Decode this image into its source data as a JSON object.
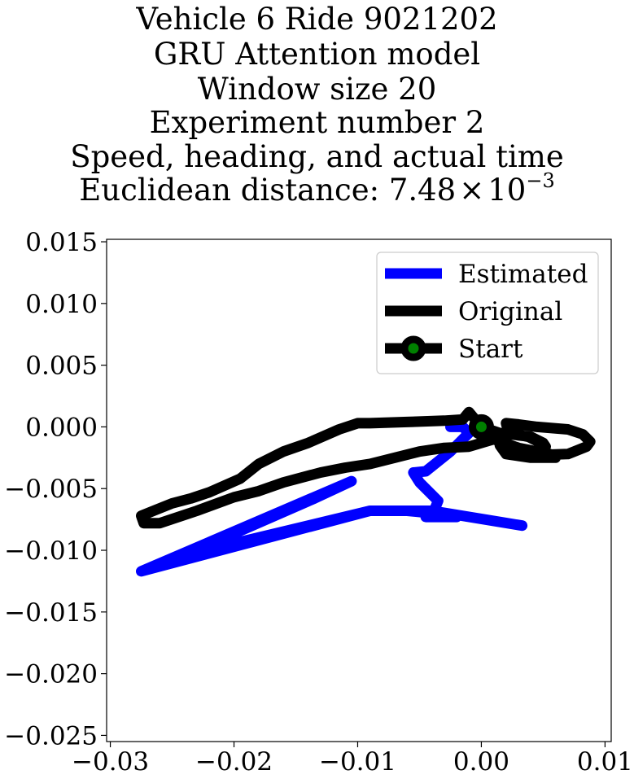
{
  "chart_data": {
    "type": "line",
    "title_lines": [
      "Vehicle 6 Ride 9021202",
      "GRU Attention model",
      "Window size 20",
      "Experiment number 2",
      "Speed, heading, and actual time"
    ],
    "title_distance_prefix": "Euclidean distance: 7.48",
    "title_distance_times": "×",
    "title_distance_base": "10",
    "title_distance_exp": "−3",
    "xlim": [
      -0.0303,
      0.0105
    ],
    "ylim": [
      -0.0255,
      0.0152
    ],
    "xticks": [
      -0.03,
      -0.02,
      -0.01,
      0.0,
      0.01
    ],
    "xtick_labels": [
      "−0.03",
      "−0.02",
      "−0.01",
      "0.00",
      "0.01"
    ],
    "yticks": [
      0.015,
      0.01,
      0.005,
      0.0,
      -0.005,
      -0.01,
      -0.015,
      -0.02,
      -0.025
    ],
    "ytick_labels": [
      "0.015",
      "0.010",
      "0.005",
      "0.000",
      "−0.005",
      "−0.010",
      "−0.015",
      "−0.020",
      "−0.025"
    ],
    "grid": false,
    "legend_position": "top-right",
    "series": [
      {
        "name": "Estimated",
        "color": "#0000ff",
        "points": [
          [
            -0.0025,
            0.0
          ],
          [
            -0.0015,
            0.0
          ],
          [
            -0.001,
            -0.0005
          ],
          [
            -0.0025,
            -0.002
          ],
          [
            -0.0045,
            -0.0036
          ],
          [
            -0.0055,
            -0.0037
          ],
          [
            -0.005,
            -0.0045
          ],
          [
            -0.0035,
            -0.006
          ],
          [
            -0.004,
            -0.0072
          ],
          [
            -0.0045,
            -0.0073
          ],
          [
            -0.002,
            -0.0073
          ],
          [
            -0.004,
            -0.007
          ],
          [
            -0.006,
            -0.0068
          ],
          [
            -0.009,
            -0.0068
          ],
          [
            -0.0275,
            -0.0117
          ],
          [
            -0.0105,
            -0.0044
          ],
          [
            -0.0135,
            -0.0058
          ],
          [
            -0.024,
            -0.0104
          ],
          [
            -0.009,
            -0.0068
          ],
          [
            -0.004,
            -0.0068
          ],
          [
            0.0033,
            -0.008
          ]
        ]
      },
      {
        "name": "Original",
        "color": "#000000",
        "points": [
          [
            0.0,
            0.0
          ],
          [
            -0.001,
            0.0012
          ],
          [
            -0.0015,
            0.0006
          ],
          [
            -0.003,
            0.0005
          ],
          [
            -0.006,
            0.0004
          ],
          [
            -0.009,
            0.0003
          ],
          [
            -0.01,
            0.0003
          ],
          [
            -0.0115,
            -0.0002
          ],
          [
            -0.014,
            -0.0013
          ],
          [
            -0.016,
            -0.002
          ],
          [
            -0.018,
            -0.003
          ],
          [
            -0.0195,
            -0.0042
          ],
          [
            -0.022,
            -0.0053
          ],
          [
            -0.0235,
            -0.0058
          ],
          [
            -0.025,
            -0.0062
          ],
          [
            -0.0265,
            -0.0068
          ],
          [
            -0.0275,
            -0.0072
          ],
          [
            -0.0273,
            -0.0078
          ],
          [
            -0.026,
            -0.0078
          ],
          [
            -0.023,
            -0.0068
          ],
          [
            -0.02,
            -0.0057
          ],
          [
            -0.018,
            -0.0052
          ],
          [
            -0.016,
            -0.0045
          ],
          [
            -0.013,
            -0.0037
          ],
          [
            -0.011,
            -0.0033
          ],
          [
            -0.009,
            -0.003
          ],
          [
            -0.007,
            -0.0025
          ],
          [
            -0.005,
            -0.002
          ],
          [
            -0.003,
            -0.0017
          ],
          [
            -0.001,
            -0.0016
          ],
          [
            0.001,
            -0.001
          ],
          [
            0.003,
            -0.0017
          ],
          [
            0.0055,
            -0.0022
          ],
          [
            0.006,
            -0.0025
          ],
          [
            0.004,
            -0.0025
          ],
          [
            0.002,
            -0.0022
          ],
          [
            0.0015,
            -0.0015
          ],
          [
            0.002,
            -0.0022
          ],
          [
            0.004,
            -0.0023
          ],
          [
            0.007,
            -0.0022
          ],
          [
            0.0085,
            -0.0016
          ],
          [
            0.0088,
            -0.0012
          ],
          [
            0.0082,
            -0.0006
          ],
          [
            0.007,
            -0.0002
          ],
          [
            0.0045,
            0.0
          ],
          [
            0.003,
            0.0002
          ],
          [
            0.002,
            0.0003
          ],
          [
            0.0022,
            -0.0005
          ],
          [
            0.0038,
            -0.0008
          ],
          [
            0.005,
            -0.0014
          ],
          [
            0.0052,
            -0.0016
          ],
          [
            0.005,
            -0.0013
          ],
          [
            0.004,
            -0.0008
          ],
          [
            0.0015,
            -0.0005
          ],
          [
            0.0,
            0.0
          ]
        ]
      }
    ],
    "start_marker": {
      "name": "Start",
      "x": 0.0,
      "y": 0.0,
      "edge_color": "#000000",
      "face_color": "#008000"
    }
  }
}
